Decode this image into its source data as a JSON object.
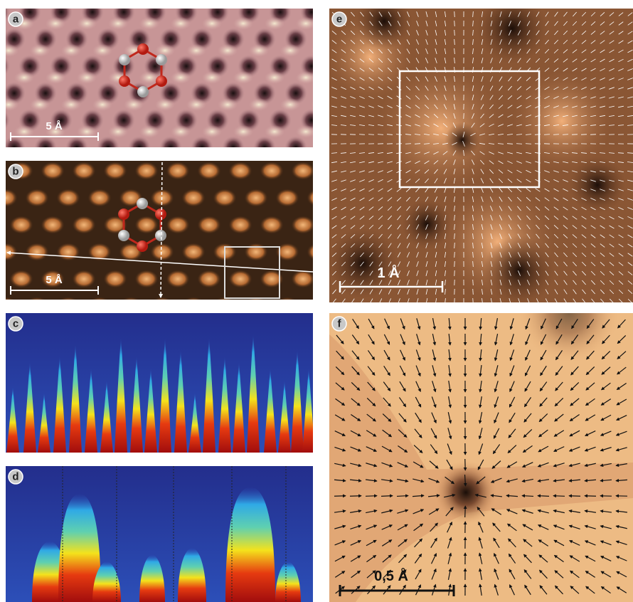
{
  "panels": [
    {
      "label": "a",
      "scale_bar": "5 Å"
    },
    {
      "label": "b",
      "scale_bar": "5 Å"
    },
    {
      "label": "c"
    },
    {
      "label": "d"
    },
    {
      "label": "e",
      "scale_bar": "1 Å"
    },
    {
      "label": "f",
      "scale_bar": "0,5 Å"
    }
  ]
}
